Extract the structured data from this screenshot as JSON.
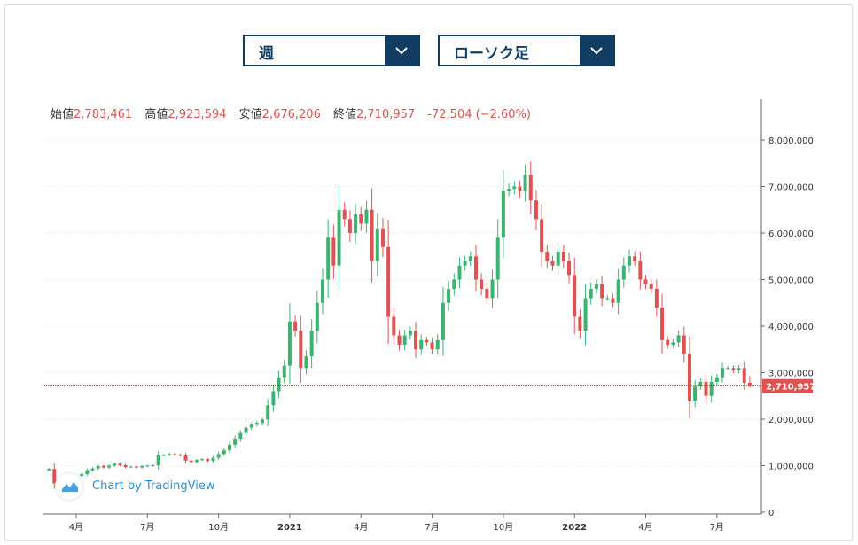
{
  "controls": {
    "period_select": {
      "value": "週"
    },
    "type_select": {
      "value": "ローソク足"
    }
  },
  "ohlc": {
    "open_label": "始値",
    "open": "2,783,461",
    "high_label": "高値",
    "high": "2,923,594",
    "low_label": "安値",
    "low": "2,676,206",
    "close_label": "終値",
    "close": "2,710,957",
    "change": "-72,504 (−2.60%)"
  },
  "attribution": "Chart by TradingView",
  "colors": {
    "up": "#26a69a",
    "down": "#ef5350",
    "up_fill": "#3cb371",
    "down_fill": "#e05252",
    "accent": "#123d63"
  },
  "chart_data": {
    "type": "candlestick",
    "ylim": [
      0,
      8800000
    ],
    "y_ticks": [
      0,
      1000000,
      2000000,
      3000000,
      4000000,
      5000000,
      6000000,
      7000000,
      8000000
    ],
    "y_tick_labels": [
      "0",
      "1,000,000",
      "2,000,000",
      "3,000,000",
      "4,000,000",
      "5,000,000",
      "6,000,000",
      "7,000,000",
      "8,000,000"
    ],
    "x_tick_labels": [
      {
        "week": 5,
        "label": "4月",
        "bold": false
      },
      {
        "week": 18,
        "label": "7月",
        "bold": false
      },
      {
        "week": 31,
        "label": "10月",
        "bold": false
      },
      {
        "week": 44,
        "label": "2021",
        "bold": true
      },
      {
        "week": 57,
        "label": "4月",
        "bold": false
      },
      {
        "week": 70,
        "label": "7月",
        "bold": false
      },
      {
        "week": 83,
        "label": "10月",
        "bold": false
      },
      {
        "week": 96,
        "label": "2022",
        "bold": true
      },
      {
        "week": 109,
        "label": "4月",
        "bold": false
      },
      {
        "week": 122,
        "label": "7月",
        "bold": false
      }
    ],
    "last_price": 2710957,
    "last_price_label": "2,710,957",
    "close_series": [
      930000,
      620000,
      640000,
      720000,
      700000,
      780000,
      820000,
      900000,
      940000,
      990000,
      960000,
      1000000,
      1040000,
      1010000,
      970000,
      980000,
      960000,
      990000,
      1000000,
      1010000,
      1220000,
      1230000,
      1250000,
      1240000,
      1220000,
      1110000,
      1080000,
      1120000,
      1140000,
      1100000,
      1170000,
      1250000,
      1330000,
      1450000,
      1580000,
      1700000,
      1820000,
      1880000,
      1920000,
      1990000,
      2300000,
      2600000,
      2900000,
      3150000,
      4100000,
      3900000,
      3100000,
      3350000,
      3900000,
      4500000,
      5000000,
      5900000,
      5300000,
      6500000,
      6300000,
      6000000,
      6400000,
      6200000,
      6500000,
      5400000,
      6100000,
      5700000,
      4200000,
      3800000,
      3600000,
      3800000,
      3900000,
      3500000,
      3700000,
      3650000,
      3500000,
      3700000,
      4500000,
      4800000,
      5000000,
      5300000,
      5400000,
      5500000,
      5000000,
      4800000,
      4600000,
      5000000,
      5900000,
      6900000,
      6950000,
      7000000,
      6900000,
      7250000,
      6700000,
      6300000,
      5600000,
      5400000,
      5300000,
      5600000,
      5400000,
      5100000,
      4200000,
      3900000,
      4600000,
      4800000,
      4900000,
      4600000,
      4600000,
      4500000,
      5000000,
      5300000,
      5500000,
      5400000,
      5000000,
      4900000,
      4800000,
      4400000,
      3700000,
      3600000,
      3650000,
      3800000,
      3400000,
      2400000,
      2700000,
      2800000,
      2500000,
      2800000,
      2900000,
      3100000,
      3100000,
      3050000,
      3100000,
      2783461,
      2710957
    ],
    "last_candle": {
      "open": 2783461,
      "high": 2923594,
      "low": 2676206,
      "close": 2710957
    }
  }
}
